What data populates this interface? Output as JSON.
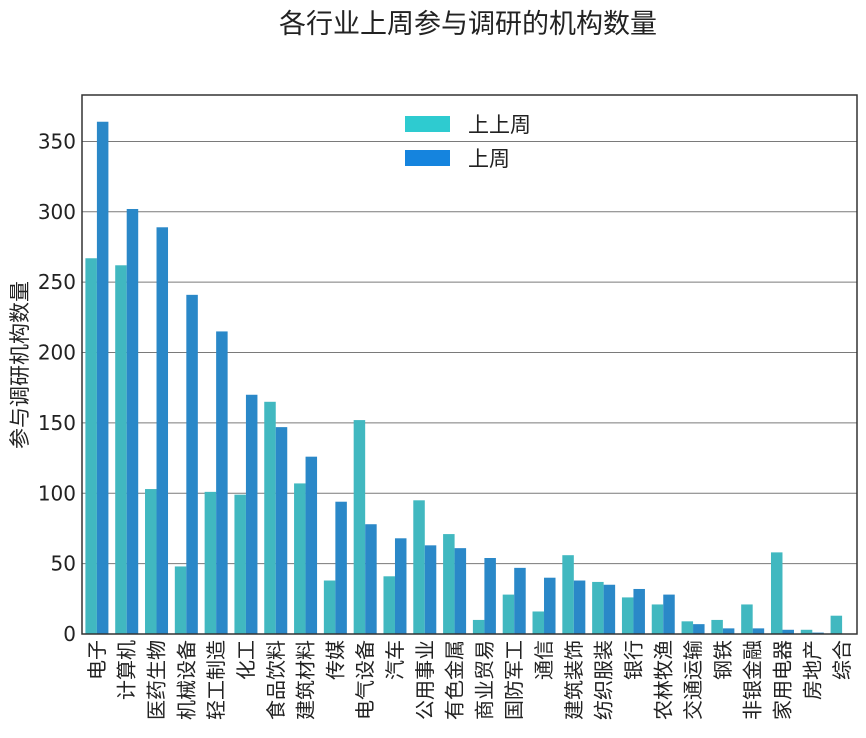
{
  "chart_data": {
    "type": "bar",
    "title": "各行业上周参与调研的机构数量",
    "xlabel": "",
    "ylabel": "参与调研机构数量",
    "ylim": [
      0,
      383
    ],
    "yticks": [
      0,
      50,
      100,
      150,
      200,
      250,
      300,
      350
    ],
    "grid": "horizontal",
    "legend_position": "top-center",
    "categories": [
      "电子",
      "计算机",
      "医药生物",
      "机械设备",
      "轻工制造",
      "化工",
      "食品饮料",
      "建筑材料",
      "传媒",
      "电气设备",
      "汽车",
      "公用事业",
      "有色金属",
      "商业贸易",
      "国防军工",
      "通信",
      "建筑装饰",
      "纺织服装",
      "银行",
      "农林牧渔",
      "交通运输",
      "钢铁",
      "非银金融",
      "家用电器",
      "房地产",
      "综合"
    ],
    "series": [
      {
        "name": "上上周",
        "color": "#41b8c0",
        "legend_color": "#2ecbd0",
        "values": [
          267,
          262,
          103,
          48,
          101,
          99,
          165,
          107,
          38,
          152,
          41,
          95,
          71,
          10,
          28,
          16,
          56,
          37,
          26,
          21,
          9,
          10,
          21,
          58,
          3,
          13
        ]
      },
      {
        "name": "上周",
        "color": "#2a88c8",
        "legend_color": "#1584de",
        "values": [
          364,
          302,
          289,
          241,
          215,
          170,
          147,
          126,
          94,
          78,
          68,
          63,
          61,
          54,
          47,
          40,
          38,
          35,
          32,
          28,
          7,
          4,
          4,
          3,
          1,
          0
        ]
      }
    ]
  }
}
